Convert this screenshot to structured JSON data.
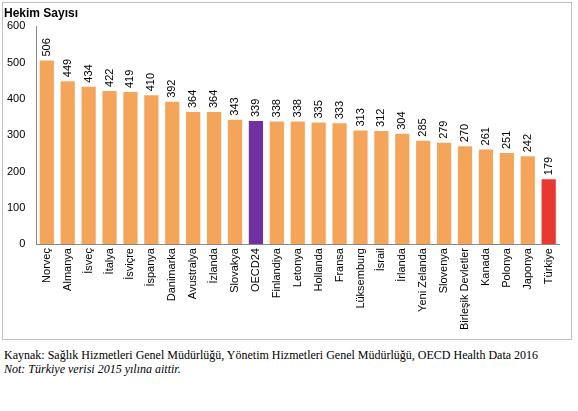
{
  "chart_data": {
    "type": "bar",
    "y_label": "Hekim Sayısı",
    "categories": [
      "Norveç",
      "Almanya",
      "İsveç",
      "İtalya",
      "İsviçre",
      "İspanya",
      "Danimarka",
      "Avustralya",
      "İzlanda",
      "Slovakya",
      "OECD24",
      "Finlandiya",
      "Letonya",
      "Hollanda",
      "Fransa",
      "Lüksemburg",
      "İsrail",
      "İrlanda",
      "Yeni Zelanda",
      "Slovenya",
      "Birleşik Devletler",
      "Kanada",
      "Polonya",
      "Japonya",
      "Türkiye"
    ],
    "values": [
      506,
      449,
      434,
      422,
      419,
      410,
      392,
      364,
      364,
      343,
      339,
      338,
      338,
      335,
      333,
      313,
      312,
      304,
      285,
      279,
      270,
      261,
      251,
      242,
      179
    ],
    "colors": [
      "#f5a55a",
      "#f5a55a",
      "#f5a55a",
      "#f5a55a",
      "#f5a55a",
      "#f5a55a",
      "#f5a55a",
      "#f5a55a",
      "#f5a55a",
      "#f5a55a",
      "#7030a0",
      "#f5a55a",
      "#f5a55a",
      "#f5a55a",
      "#f5a55a",
      "#f5a55a",
      "#f5a55a",
      "#f5a55a",
      "#f5a55a",
      "#f5a55a",
      "#f5a55a",
      "#f5a55a",
      "#f5a55a",
      "#f5a55a",
      "#e8382f"
    ],
    "ylim": [
      0,
      600
    ],
    "yticks": [
      0,
      100,
      200,
      300,
      400,
      500,
      600
    ],
    "grid": false,
    "data_labels": true,
    "annotations": [
      "Kaynak: Sağlık Hizmetleri Genel Müdürlüğü, Yönetim Hizmetleri Genel Müdürlüğü,  OECD Health Data 2016",
      "Not: Türkiye verisi 2015 yılına aittir."
    ]
  }
}
